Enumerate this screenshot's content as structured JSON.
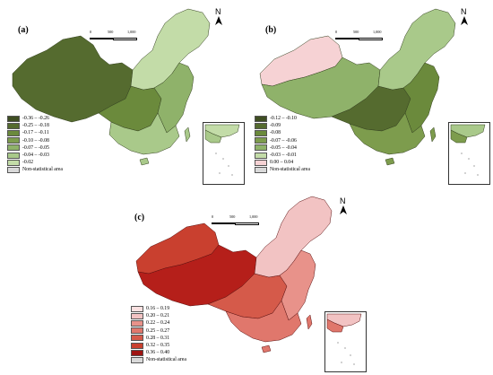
{
  "panels": [
    {
      "id": "a",
      "label": "(a)",
      "scale": {
        "zero": "0",
        "mid": "500",
        "max": "1,000"
      },
      "north": "N",
      "colors": {
        "west": "#556b2f",
        "central": "#6b8a3c",
        "east": "#8fb26a",
        "south": "#a9c98a",
        "north": "#c3dca8",
        "border": "#33401f"
      },
      "legend": [
        {
          "label": "-0.36 – -0.26",
          "color": "#3f4e22"
        },
        {
          "label": "-0.25 – -0.18",
          "color": "#556b2f"
        },
        {
          "label": "-0.17 – -0.11",
          "color": "#6b8a3c"
        },
        {
          "label": "-0.10 – -0.08",
          "color": "#7d9c4d"
        },
        {
          "label": "-0.07 – -0.05",
          "color": "#8fb26a"
        },
        {
          "label": "-0.04 – -0.03",
          "color": "#a9c98a"
        },
        {
          "label": "-0.02",
          "color": "#c3dca8"
        },
        {
          "label": "Non-statistical area",
          "color": "#d9d9d9"
        }
      ]
    },
    {
      "id": "b",
      "label": "(b)",
      "scale": {
        "zero": "0",
        "mid": "500",
        "max": "1,000"
      },
      "north": "N",
      "colors": {
        "west": "#f6d2d4",
        "xinjiang": "#f6d2d4",
        "tibet": "#8fb26a",
        "central": "#556b2f",
        "east": "#6b8a3c",
        "south": "#7d9c4d",
        "north": "#a9c98a",
        "border": "#33401f"
      },
      "legend": [
        {
          "label": "-0.12 – -0.10",
          "color": "#3f4e22"
        },
        {
          "label": "-0.09",
          "color": "#556b2f"
        },
        {
          "label": "-0.08",
          "color": "#6b8a3c"
        },
        {
          "label": "-0.07 – -0.06",
          "color": "#7d9c4d"
        },
        {
          "label": "-0.05 – -0.04",
          "color": "#8fb26a"
        },
        {
          "label": "-0.03 – -0.01",
          "color": "#c3dca8"
        },
        {
          "label": "0.00 – 0.04",
          "color": "#f6d2d4"
        },
        {
          "label": "Non-statistical area",
          "color": "#d9d9d9"
        }
      ]
    },
    {
      "id": "c",
      "label": "(c)",
      "scale": {
        "zero": "0",
        "mid": "500",
        "max": "1,000"
      },
      "north": "N",
      "colors": {
        "west": "#b51f1a",
        "xinjiang": "#c9402f",
        "tibet": "#b51f1a",
        "central": "#d55a4a",
        "east": "#e8928a",
        "south": "#e0776c",
        "north": "#f2c3c3",
        "border": "#5a1010"
      },
      "legend": [
        {
          "label": "0.16 – 0.19",
          "color": "#fbe1e1"
        },
        {
          "label": "0.20 – 0.21",
          "color": "#f2c3c3"
        },
        {
          "label": "0.22 – 0.24",
          "color": "#e8928a"
        },
        {
          "label": "0.25 – 0.27",
          "color": "#e0776c"
        },
        {
          "label": "0.28 – 0.31",
          "color": "#d55a4a"
        },
        {
          "label": "0.32 – 0.35",
          "color": "#c9402f"
        },
        {
          "label": "0.36 – 0.40",
          "color": "#9e1412"
        },
        {
          "label": "Non-statistical area",
          "color": "#d9d9d9"
        }
      ]
    }
  ]
}
